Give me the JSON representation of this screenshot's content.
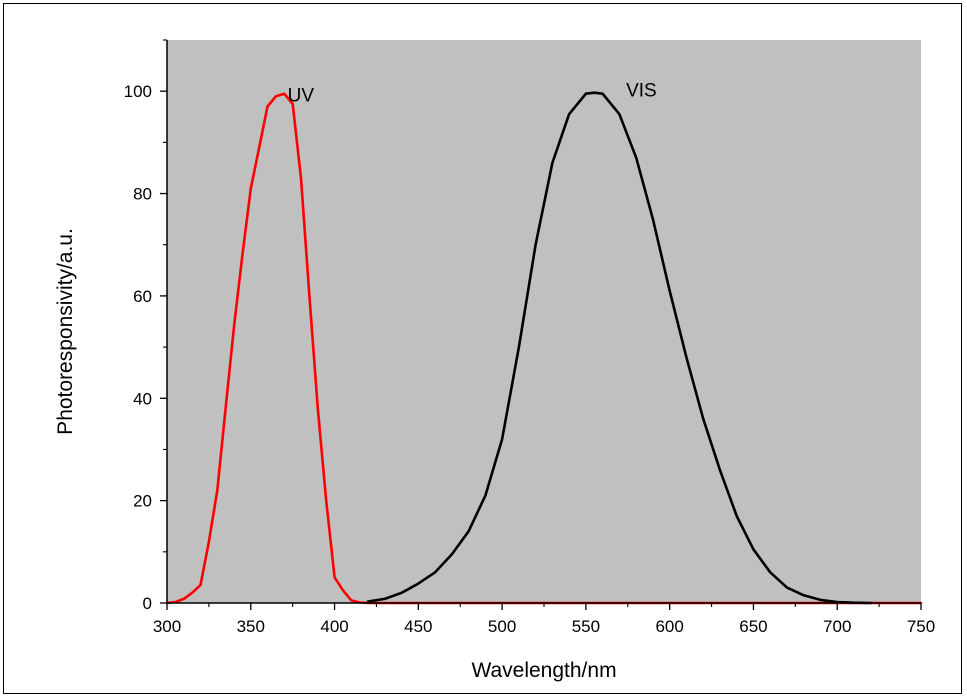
{
  "chart_data": {
    "type": "line",
    "xlabel": "Wavelength/nm",
    "ylabel": "Photoresponsivity/a.u.",
    "xlim": [
      300,
      750
    ],
    "ylim": [
      0,
      110
    ],
    "x_ticks": [
      300,
      350,
      400,
      450,
      500,
      550,
      600,
      650,
      700,
      750
    ],
    "y_ticks": [
      0,
      20,
      40,
      60,
      80,
      100
    ],
    "grid": false,
    "plot_background": "#c0c0c0",
    "series": [
      {
        "name": "UV",
        "color": "#ff0000",
        "x": [
          300,
          305,
          310,
          315,
          320,
          325,
          330,
          335,
          340,
          345,
          350,
          355,
          360,
          365,
          370,
          375,
          380,
          385,
          390,
          395,
          400,
          405,
          410,
          415,
          420,
          450,
          500,
          550,
          600,
          650,
          700,
          750
        ],
        "y": [
          0,
          0.2,
          0.8,
          2,
          3.5,
          12,
          22,
          38,
          54,
          68,
          81,
          89,
          97,
          99,
          99.5,
          97.5,
          83,
          60,
          38,
          20,
          5,
          2.5,
          0.5,
          0.1,
          0,
          0,
          0,
          0,
          0,
          0,
          0,
          0
        ]
      },
      {
        "name": "VIS",
        "color": "#000000",
        "x": [
          420,
          430,
          440,
          450,
          460,
          470,
          480,
          490,
          500,
          510,
          520,
          530,
          540,
          550,
          555,
          560,
          570,
          580,
          590,
          600,
          610,
          620,
          630,
          640,
          650,
          660,
          670,
          680,
          690,
          700,
          710,
          720
        ],
        "y": [
          0.3,
          0.8,
          2,
          3.8,
          6,
          9.5,
          14,
          21,
          32,
          50,
          70,
          86,
          95.5,
          99.5,
          99.7,
          99.5,
          95.5,
          87,
          75,
          61,
          48,
          36,
          26,
          17,
          10.5,
          6,
          3,
          1.5,
          0.6,
          0.2,
          0.05,
          0
        ]
      }
    ],
    "annotations": [
      {
        "text": "UV",
        "x": 372,
        "y": 98
      },
      {
        "text": "VIS",
        "x": 574,
        "y": 99
      }
    ]
  }
}
